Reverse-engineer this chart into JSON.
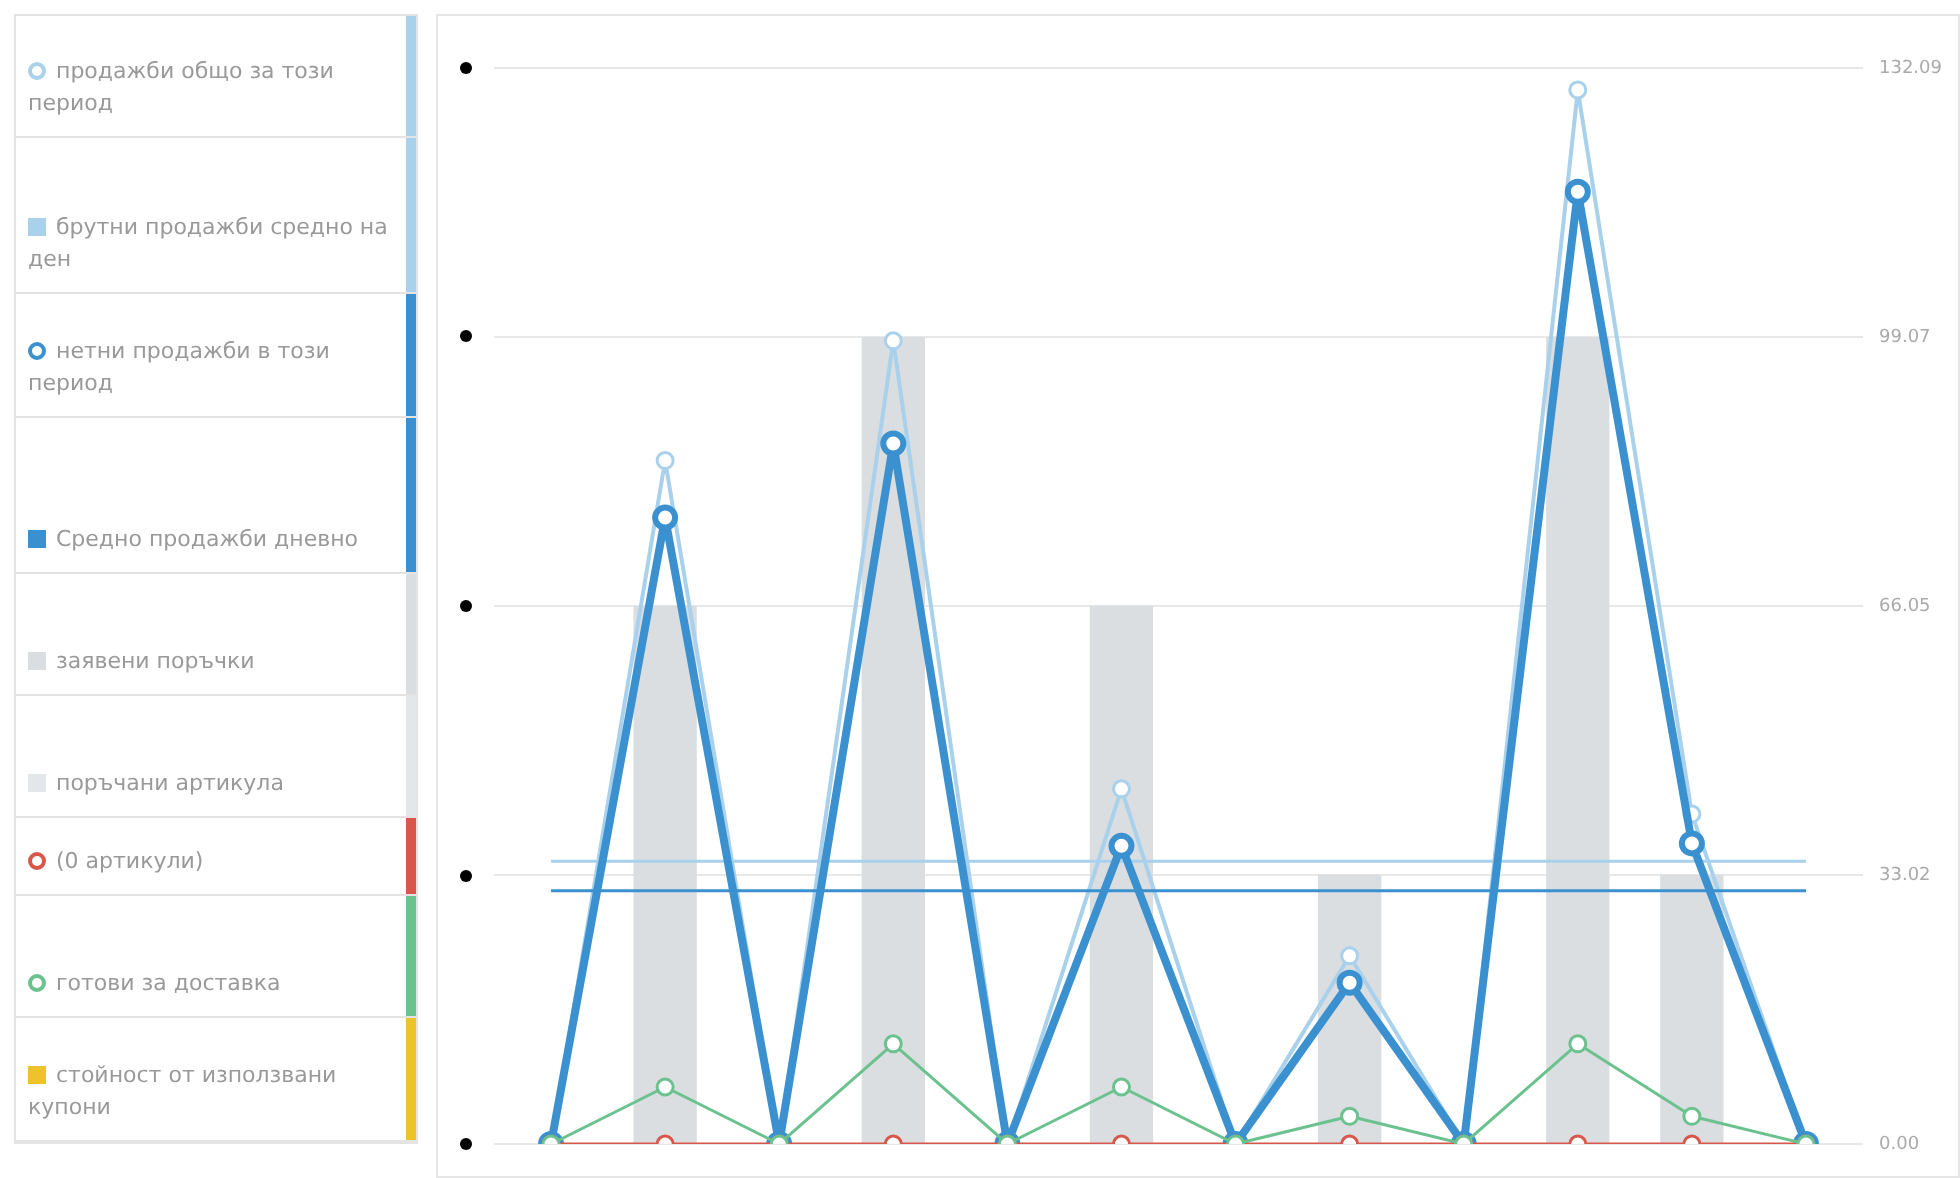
{
  "chart_data": {
    "type": "line",
    "categories": [
      null,
      null,
      null,
      null,
      null,
      null,
      null,
      null,
      null,
      null,
      null,
      null
    ],
    "series": [
      {
        "name": "продажби общо за този период",
        "color": "#a9d1eb",
        "marker": "circle",
        "values": [
          0,
          83.9,
          0,
          98.6,
          0,
          43.6,
          0,
          23.1,
          0,
          129.4,
          40.5,
          0
        ]
      },
      {
        "name": "брутни продажби средно на ден",
        "color": "#a9d1eb",
        "marker": "none",
        "values": [
          34.7,
          34.7,
          34.7,
          34.7,
          34.7,
          34.7,
          34.7,
          34.7,
          34.7,
          34.7,
          34.7,
          34.7
        ]
      },
      {
        "name": "нетни продажби в този период",
        "color": "#3b91cf",
        "marker": "circle",
        "values": [
          0,
          76.9,
          0,
          86.0,
          0,
          36.6,
          0,
          19.8,
          0,
          116.9,
          36.9,
          0
        ]
      },
      {
        "name": "Средно продажби дневно",
        "color": "#3b91cf",
        "marker": "none",
        "values": [
          31.1,
          31.1,
          31.1,
          31.1,
          31.1,
          31.1,
          31.1,
          31.1,
          31.1,
          31.1,
          31.1,
          31.1
        ]
      },
      {
        "name": "заявени поръчки",
        "type": "bar",
        "color": "#dadee1",
        "values": [
          null,
          66,
          null,
          99,
          null,
          66,
          null,
          33,
          null,
          99,
          33,
          null
        ]
      },
      {
        "name": "поръчани артикула",
        "type": "bar",
        "color": "#e3e7e9",
        "values": [
          null,
          null,
          null,
          null,
          null,
          null,
          null,
          null,
          null,
          null,
          null,
          null
        ]
      },
      {
        "name": "(0 артикули)",
        "color": "#d9574a",
        "marker": "circle",
        "values": [
          0,
          0,
          0,
          0,
          0,
          0,
          0,
          0,
          0,
          0,
          0,
          0
        ]
      },
      {
        "name": "готови за доставка",
        "color": "#6cc28e",
        "marker": "circle",
        "values": [
          0,
          7.0,
          0,
          12.3,
          0,
          7.0,
          0,
          3.4,
          0,
          12.3,
          3.4,
          0
        ]
      },
      {
        "name": "стойност от използвани купони",
        "color": "#ecc32a",
        "marker": "none",
        "values": [
          null,
          null,
          null,
          null,
          null,
          null,
          null,
          null,
          null,
          null,
          null,
          null
        ]
      }
    ],
    "ylim": [
      0,
      132.09
    ],
    "yticks": [
      {
        "value": 0,
        "label": "0.00"
      },
      {
        "value": 33.02,
        "label": "33.02"
      },
      {
        "value": 66.05,
        "label": "66.05"
      },
      {
        "value": 99.07,
        "label": "99.07"
      },
      {
        "value": 132.09,
        "label": "132.09"
      }
    ],
    "grid": "y",
    "legend": "left"
  }
}
